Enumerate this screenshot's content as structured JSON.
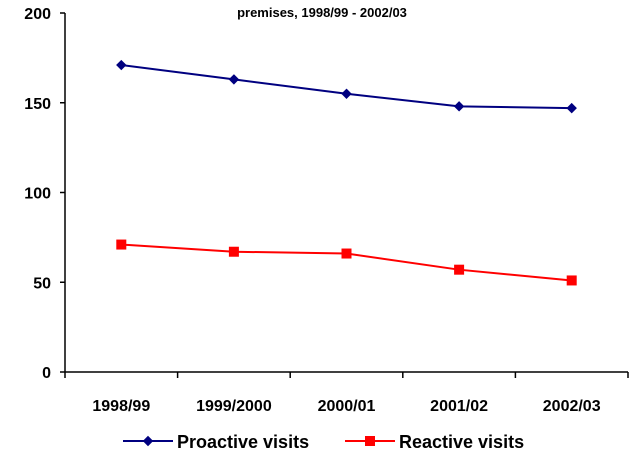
{
  "chart_data": {
    "type": "line",
    "title": "premises, 1998/99 - 2002/03",
    "xlabel": "",
    "ylabel": "",
    "categories": [
      "1998/99",
      "1999/2000",
      "2000/01",
      "2001/02",
      "2002/03"
    ],
    "ylim": [
      0,
      200
    ],
    "yticks": [
      0,
      50,
      100,
      150,
      200
    ],
    "grid": false,
    "legend": "bottom",
    "series": [
      {
        "name": "Proactive visits",
        "values": [
          171,
          163,
          155,
          148,
          147
        ],
        "color": "#000080",
        "marker": "diamond"
      },
      {
        "name": "Reactive visits",
        "values": [
          71,
          67,
          66,
          57,
          51
        ],
        "color": "#ff0000",
        "marker": "square"
      }
    ]
  }
}
